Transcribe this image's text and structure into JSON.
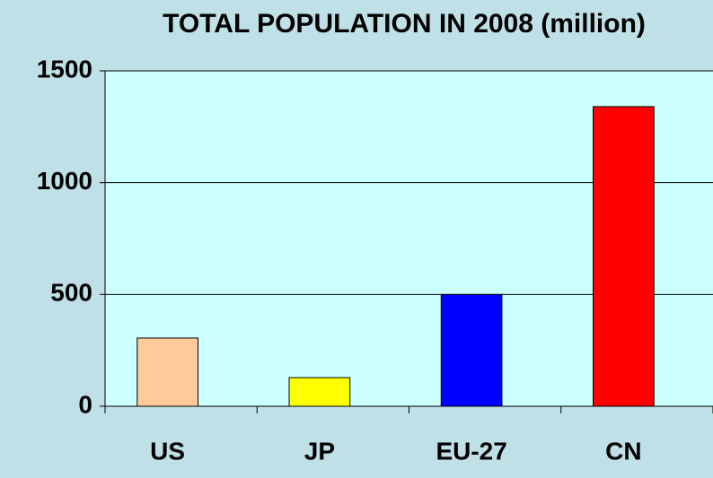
{
  "chart_data": {
    "type": "bar",
    "title": "TOTAL POPULATION IN 2008 (million)",
    "categories": [
      "US",
      "JP",
      "EU-27",
      "CN"
    ],
    "values": [
      305,
      128,
      500,
      1340
    ],
    "colors": [
      "#ffcc99",
      "#ffff00",
      "#0000ff",
      "#ff0000"
    ],
    "ylim": [
      0,
      1500
    ],
    "yticks": [
      0,
      500,
      1000,
      1500
    ],
    "grid": true
  }
}
